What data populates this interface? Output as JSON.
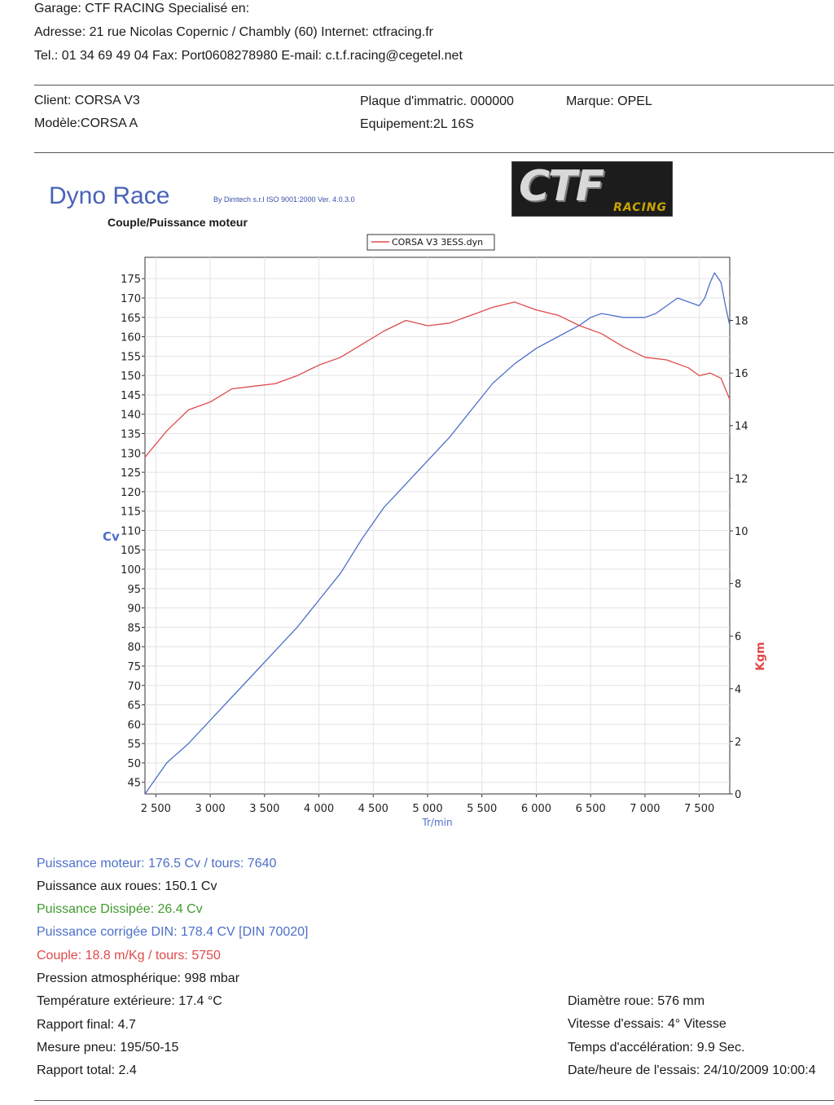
{
  "header": {
    "garage": "Garage: CTF RACING   Specialisé en:",
    "address": "Adresse: 21 rue Nicolas Copernic / Chambly (60) Internet: ctfracing.fr",
    "contact": "Tel.: 01 34 69 49 04 Fax: Port0608278980 E-mail: c.t.f.racing@cegetel.net"
  },
  "vehicle": {
    "client": "Client:    CORSA V3",
    "model": "Modèle:CORSA A",
    "plate": "Plaque d'immatric. 000000",
    "equipment": "Equipement:2L 16S",
    "brand": "Marque: OPEL"
  },
  "logo": {
    "big": "CTF",
    "small": "RACING"
  },
  "report": {
    "product": "Dyno Race",
    "version": "By Dimtech s.r.l  ISO 9001:2000  Ver. 4.0.3.0",
    "chart_title": "Couple/Puissance moteur"
  },
  "colors": {
    "power": "#4d6fc9",
    "torque": "#e04a4a",
    "dissipated": "#3f9a2e",
    "axis": "#333333"
  },
  "chart_data": {
    "type": "line",
    "title": "Couple/Puissance moteur",
    "legend": {
      "entries": [
        "CORSA V3 3ESS.dyn"
      ],
      "placement": "top-center"
    },
    "xlabel": "Tr/min",
    "ylabel_left": "Cv",
    "ylabel_right": "Kgm",
    "xlim": [
      2400,
      7780
    ],
    "ylim_left": [
      42,
      180.5
    ],
    "ylim_right": [
      0,
      20.4
    ],
    "x_ticks": [
      2500,
      3000,
      3500,
      4000,
      4500,
      5000,
      5500,
      6000,
      6500,
      7000,
      7500
    ],
    "x_tick_labels": [
      "2 500",
      "3 000",
      "3 500",
      "4 000",
      "4 500",
      "5 000",
      "5 500",
      "6 000",
      "6 500",
      "7 000",
      "7 500"
    ],
    "y_left_ticks": [
      45,
      50,
      55,
      60,
      65,
      70,
      75,
      80,
      85,
      90,
      95,
      100,
      105,
      110,
      115,
      120,
      125,
      130,
      135,
      140,
      145,
      150,
      155,
      160,
      165,
      170,
      175
    ],
    "y_right_ticks": [
      0,
      2,
      4,
      6,
      8,
      10,
      12,
      14,
      16,
      18
    ],
    "grid": true,
    "series": [
      {
        "axis": "left",
        "x": [
          2400,
          2600,
          2800,
          3000,
          3200,
          3400,
          3600,
          3800,
          4000,
          4200,
          4400,
          4600,
          4800,
          5000,
          5200,
          5400,
          5600,
          5800,
          6000,
          6200,
          6400,
          6500,
          6600,
          6800,
          7000,
          7100,
          7200,
          7300,
          7400,
          7500,
          7550,
          7600,
          7640,
          7700,
          7740,
          7780
        ],
        "values": [
          42,
          50,
          55,
          61,
          67,
          73,
          79,
          85,
          92,
          99,
          108,
          116,
          122,
          128,
          134,
          141,
          148,
          153,
          157,
          160,
          163,
          165,
          166,
          165,
          165,
          166,
          168,
          170,
          169,
          168,
          170,
          174,
          176.5,
          174,
          168,
          163
        ]
      },
      {
        "axis": "right",
        "name": "CORSA V3 3ESS.dyn",
        "x": [
          2400,
          2600,
          2800,
          3000,
          3200,
          3400,
          3600,
          3800,
          4000,
          4200,
          4400,
          4600,
          4800,
          5000,
          5200,
          5400,
          5600,
          5800,
          6000,
          6200,
          6400,
          6600,
          6800,
          7000,
          7200,
          7400,
          7500,
          7600,
          7700,
          7780
        ],
        "values": [
          12.8,
          13.8,
          14.6,
          14.9,
          15.4,
          15.5,
          15.6,
          15.9,
          16.3,
          16.6,
          17.1,
          17.6,
          18.0,
          17.8,
          17.9,
          18.2,
          18.5,
          18.7,
          18.4,
          18.2,
          17.8,
          17.5,
          17.0,
          16.6,
          16.5,
          16.2,
          15.9,
          16.0,
          15.8,
          15.0
        ]
      }
    ]
  },
  "results": {
    "power": "Puissance moteur:  176.5 Cv / tours: 7640",
    "wheel_power": "Puissance aux roues:  150.1 Cv",
    "dissipated": "Puissance Dissipée:   26.4 Cv",
    "din": "Puissance corrigée DIN:  178.4 CV  [DIN 70020]",
    "torque": "Couple:  18.8  m/Kg / tours: 5750",
    "pressure": "Pression atmosphérique:  998 mbar",
    "temperature": "Température extérieure:   17.4 °C",
    "final_ratio": "Rapport final: 4.7",
    "tyre": "Mesure pneu:  195/50-15",
    "total_ratio": "Rapport total: 2.4",
    "wheel_diameter": "Diamètre roue:  576 mm",
    "test_speed": "Vitesse d'essais:  4° Vitesse",
    "accel_time": "Temps d'accélération: 9.9 Sec.",
    "datetime": "Date/heure de l'essais: 24/10/2009 10:00:4"
  }
}
